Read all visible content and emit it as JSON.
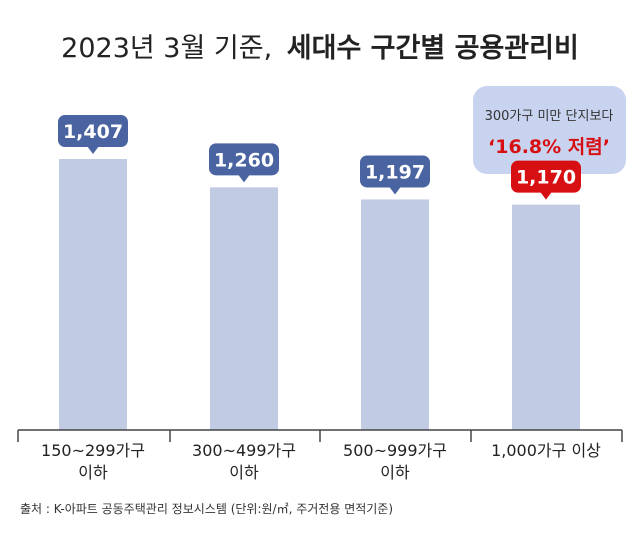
{
  "title": {
    "prefix": "2023년 3월 기준,",
    "main": "세대수 구간별 공용관리비"
  },
  "callout": {
    "line1": "300가구 미만 단지보다",
    "line2": "‘16.8% 저렴’"
  },
  "source": "출처 :  K-아파트 공동주택관리 정보시스템 (단위:원/㎡, 주거전용 면적기준)",
  "colors": {
    "bar": "#c1cbe4",
    "label_default": "#4a64a2",
    "label_highlight": "#d80f12",
    "callout_bg": "#c8d4ef",
    "callout_line1": "#333333",
    "callout_line2": "#d80f12",
    "axis": "#444444",
    "text": "#222222"
  },
  "chart_data": {
    "type": "bar",
    "categories": [
      [
        "150~299가구",
        "이하"
      ],
      [
        "300~499가구",
        "이하"
      ],
      [
        "500~999가구",
        "이하"
      ],
      [
        "1,000가구 이상"
      ]
    ],
    "values": [
      1407,
      1260,
      1197,
      1170
    ],
    "value_labels": [
      "1,407",
      "1,260",
      "1,197",
      "1,170"
    ],
    "highlight_index": 3,
    "ylim": [
      0,
      1600
    ],
    "xlabel": "",
    "ylabel": ""
  }
}
